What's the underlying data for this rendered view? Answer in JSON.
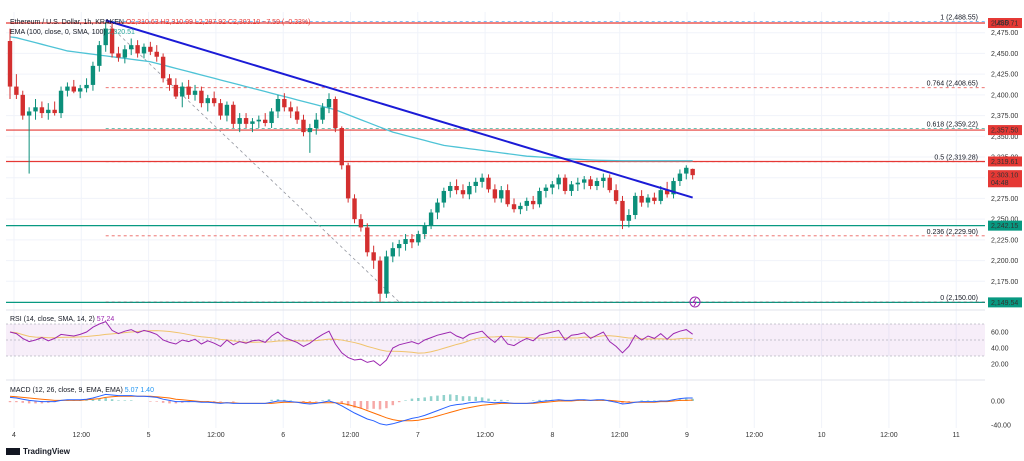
{
  "header": {
    "symbol": "Ethereum / U.S. Dollar, 1h, KRAKEN",
    "open": "O2,310.63",
    "high": "H2,310.99",
    "low": "L2,297.92",
    "close": "C2,303.10",
    "change": "−7.59 (−0.33%)",
    "ema_label": "EMA (100, close, 0, SMA, 100)",
    "ema_value": "2,320.51",
    "rsi_label": "RSI (14, close, SMA, 14, 2)",
    "rsi_value": "57.24",
    "macd_label": "MACD (12, 26, close, 9, EMA, EMA)",
    "macd_values": "5.07  1.40"
  },
  "currency": "USD",
  "brand": "TradingView",
  "price_axis": {
    "min": 2150,
    "max": 2500,
    "ticks": [
      "2,475.00",
      "2,450.00",
      "2,425.00",
      "2,400.00",
      "2,375.00",
      "2,350.00",
      "2,325.00",
      "2,300.00",
      "2,275.00",
      "2,250.00",
      "2,225.00",
      "2,200.00",
      "2,175.00"
    ],
    "tick_values": [
      2475,
      2450,
      2425,
      2400,
      2375,
      2350,
      2325,
      2300,
      2275,
      2250,
      2225,
      2200,
      2175
    ],
    "badges": [
      {
        "text": "2,486.71",
        "value": 2486.71,
        "color": "#e53935"
      },
      {
        "text": "2,357.50",
        "value": 2357.5,
        "color": "#e53935"
      },
      {
        "text": "2,319.61",
        "value": 2319.61,
        "color": "#e53935"
      },
      {
        "text": "2,303.10",
        "value": 2303.1,
        "color": "#e53935"
      },
      {
        "text": "04:48",
        "value": 2294.5,
        "color": "#e53935"
      },
      {
        "text": "2,242.15",
        "value": 2242.15,
        "color": "#089981"
      },
      {
        "text": "2,149.54",
        "value": 2149.54,
        "color": "#089981"
      }
    ]
  },
  "rsi_axis": {
    "ticks": [
      "60.00",
      "40.00",
      "20.00"
    ],
    "values": [
      60,
      40,
      20
    ]
  },
  "macd_axis": {
    "ticks": [
      "0.00",
      "-40.00"
    ],
    "values": [
      0,
      -40
    ]
  },
  "time_axis": [
    "4",
    "12:00",
    "5",
    "12:00",
    "6",
    "12:00",
    "7",
    "12:00",
    "8",
    "12:00",
    "9",
    "12:00",
    "10",
    "12:00",
    "11"
  ],
  "fib_levels": [
    {
      "label": "1 (2,488.55)",
      "value": 2488.55,
      "color": "#2196f3"
    },
    {
      "label": "0.764 (2,408.65)",
      "value": 2408.65,
      "color": "#e53935"
    },
    {
      "label": "0.618 (2,359.22)",
      "value": 2359.22,
      "color": "#089981"
    },
    {
      "label": "0.5 (2,319.28)",
      "value": 2319.28,
      "color": "#e53935"
    },
    {
      "label": "0.236 (2,229.90)",
      "value": 2229.9,
      "color": "#e53935"
    },
    {
      "label": "0 (2,150.00)",
      "value": 2150.0,
      "color": "#5d606b"
    }
  ],
  "horizontal_lines": [
    {
      "value": 2486.71,
      "color": "#e53935"
    },
    {
      "value": 2357.5,
      "color": "#e53935"
    },
    {
      "value": 2319.61,
      "color": "#e53935"
    },
    {
      "value": 2242.15,
      "color": "#089981"
    },
    {
      "value": 2149.54,
      "color": "#089981"
    }
  ],
  "trend_line": {
    "from": {
      "i": 15,
      "price": 2490
    },
    "to": {
      "i": 107,
      "price": 2276
    },
    "color": "#1b1bd6"
  },
  "chart_data": {
    "type": "candlestick",
    "title": "Ethereum / U.S. Dollar, 1h, KRAKEN",
    "ylim": [
      2150,
      2500
    ],
    "candles": [
      {
        "o": 2465,
        "h": 2480,
        "l": 2395,
        "c": 2410
      },
      {
        "o": 2410,
        "h": 2425,
        "l": 2395,
        "c": 2400
      },
      {
        "o": 2400,
        "h": 2405,
        "l": 2370,
        "c": 2375
      },
      {
        "o": 2375,
        "h": 2385,
        "l": 2305,
        "c": 2380
      },
      {
        "o": 2380,
        "h": 2395,
        "l": 2370,
        "c": 2385
      },
      {
        "o": 2385,
        "h": 2392,
        "l": 2372,
        "c": 2378
      },
      {
        "o": 2378,
        "h": 2390,
        "l": 2370,
        "c": 2382
      },
      {
        "o": 2382,
        "h": 2392,
        "l": 2375,
        "c": 2378
      },
      {
        "o": 2378,
        "h": 2410,
        "l": 2372,
        "c": 2405
      },
      {
        "o": 2405,
        "h": 2415,
        "l": 2398,
        "c": 2410
      },
      {
        "o": 2410,
        "h": 2418,
        "l": 2402,
        "c": 2404
      },
      {
        "o": 2404,
        "h": 2412,
        "l": 2396,
        "c": 2408
      },
      {
        "o": 2408,
        "h": 2420,
        "l": 2403,
        "c": 2412
      },
      {
        "o": 2412,
        "h": 2440,
        "l": 2405,
        "c": 2435
      },
      {
        "o": 2435,
        "h": 2465,
        "l": 2428,
        "c": 2460
      },
      {
        "o": 2460,
        "h": 2487,
        "l": 2452,
        "c": 2480
      },
      {
        "o": 2480,
        "h": 2486,
        "l": 2445,
        "c": 2450
      },
      {
        "o": 2450,
        "h": 2458,
        "l": 2440,
        "c": 2445
      },
      {
        "o": 2445,
        "h": 2460,
        "l": 2438,
        "c": 2455
      },
      {
        "o": 2455,
        "h": 2468,
        "l": 2448,
        "c": 2460
      },
      {
        "o": 2460,
        "h": 2466,
        "l": 2445,
        "c": 2450
      },
      {
        "o": 2450,
        "h": 2462,
        "l": 2444,
        "c": 2458
      },
      {
        "o": 2458,
        "h": 2464,
        "l": 2448,
        "c": 2452
      },
      {
        "o": 2452,
        "h": 2460,
        "l": 2440,
        "c": 2446
      },
      {
        "o": 2446,
        "h": 2450,
        "l": 2415,
        "c": 2420
      },
      {
        "o": 2420,
        "h": 2425,
        "l": 2405,
        "c": 2412
      },
      {
        "o": 2412,
        "h": 2420,
        "l": 2395,
        "c": 2398
      },
      {
        "o": 2398,
        "h": 2415,
        "l": 2385,
        "c": 2410
      },
      {
        "o": 2410,
        "h": 2418,
        "l": 2395,
        "c": 2400
      },
      {
        "o": 2400,
        "h": 2412,
        "l": 2393,
        "c": 2405
      },
      {
        "o": 2405,
        "h": 2410,
        "l": 2385,
        "c": 2390
      },
      {
        "o": 2390,
        "h": 2400,
        "l": 2380,
        "c": 2396
      },
      {
        "o": 2396,
        "h": 2404,
        "l": 2386,
        "c": 2390
      },
      {
        "o": 2390,
        "h": 2395,
        "l": 2370,
        "c": 2375
      },
      {
        "o": 2375,
        "h": 2392,
        "l": 2368,
        "c": 2388
      },
      {
        "o": 2388,
        "h": 2392,
        "l": 2360,
        "c": 2365
      },
      {
        "o": 2365,
        "h": 2378,
        "l": 2355,
        "c": 2372
      },
      {
        "o": 2372,
        "h": 2378,
        "l": 2360,
        "c": 2365
      },
      {
        "o": 2365,
        "h": 2372,
        "l": 2355,
        "c": 2368
      },
      {
        "o": 2368,
        "h": 2375,
        "l": 2360,
        "c": 2370
      },
      {
        "o": 2370,
        "h": 2378,
        "l": 2362,
        "c": 2366
      },
      {
        "o": 2366,
        "h": 2384,
        "l": 2360,
        "c": 2380
      },
      {
        "o": 2380,
        "h": 2400,
        "l": 2372,
        "c": 2395
      },
      {
        "o": 2395,
        "h": 2402,
        "l": 2380,
        "c": 2385
      },
      {
        "o": 2385,
        "h": 2392,
        "l": 2372,
        "c": 2380
      },
      {
        "o": 2380,
        "h": 2386,
        "l": 2365,
        "c": 2370
      },
      {
        "o": 2370,
        "h": 2376,
        "l": 2350,
        "c": 2355
      },
      {
        "o": 2355,
        "h": 2365,
        "l": 2330,
        "c": 2360
      },
      {
        "o": 2360,
        "h": 2378,
        "l": 2352,
        "c": 2370
      },
      {
        "o": 2370,
        "h": 2390,
        "l": 2365,
        "c": 2385
      },
      {
        "o": 2385,
        "h": 2402,
        "l": 2378,
        "c": 2395
      },
      {
        "o": 2395,
        "h": 2398,
        "l": 2355,
        "c": 2360
      },
      {
        "o": 2360,
        "h": 2362,
        "l": 2310,
        "c": 2315
      },
      {
        "o": 2315,
        "h": 2318,
        "l": 2270,
        "c": 2275
      },
      {
        "o": 2275,
        "h": 2280,
        "l": 2245,
        "c": 2250
      },
      {
        "o": 2250,
        "h": 2256,
        "l": 2235,
        "c": 2240
      },
      {
        "o": 2240,
        "h": 2245,
        "l": 2205,
        "c": 2210
      },
      {
        "o": 2210,
        "h": 2218,
        "l": 2190,
        "c": 2200
      },
      {
        "o": 2200,
        "h": 2205,
        "l": 2150,
        "c": 2160
      },
      {
        "o": 2160,
        "h": 2212,
        "l": 2155,
        "c": 2205
      },
      {
        "o": 2205,
        "h": 2222,
        "l": 2198,
        "c": 2215
      },
      {
        "o": 2215,
        "h": 2225,
        "l": 2205,
        "c": 2220
      },
      {
        "o": 2220,
        "h": 2232,
        "l": 2212,
        "c": 2226
      },
      {
        "o": 2226,
        "h": 2232,
        "l": 2215,
        "c": 2222
      },
      {
        "o": 2222,
        "h": 2236,
        "l": 2218,
        "c": 2232
      },
      {
        "o": 2232,
        "h": 2246,
        "l": 2226,
        "c": 2242
      },
      {
        "o": 2242,
        "h": 2262,
        "l": 2238,
        "c": 2258
      },
      {
        "o": 2258,
        "h": 2275,
        "l": 2250,
        "c": 2270
      },
      {
        "o": 2270,
        "h": 2288,
        "l": 2264,
        "c": 2284
      },
      {
        "o": 2284,
        "h": 2295,
        "l": 2276,
        "c": 2290
      },
      {
        "o": 2290,
        "h": 2298,
        "l": 2280,
        "c": 2285
      },
      {
        "o": 2285,
        "h": 2292,
        "l": 2275,
        "c": 2280
      },
      {
        "o": 2280,
        "h": 2295,
        "l": 2274,
        "c": 2290
      },
      {
        "o": 2290,
        "h": 2300,
        "l": 2282,
        "c": 2295
      },
      {
        "o": 2295,
        "h": 2305,
        "l": 2288,
        "c": 2300
      },
      {
        "o": 2300,
        "h": 2304,
        "l": 2282,
        "c": 2286
      },
      {
        "o": 2286,
        "h": 2292,
        "l": 2270,
        "c": 2275
      },
      {
        "o": 2275,
        "h": 2290,
        "l": 2270,
        "c": 2285
      },
      {
        "o": 2285,
        "h": 2292,
        "l": 2265,
        "c": 2268
      },
      {
        "o": 2268,
        "h": 2275,
        "l": 2258,
        "c": 2262
      },
      {
        "o": 2262,
        "h": 2270,
        "l": 2256,
        "c": 2266
      },
      {
        "o": 2266,
        "h": 2276,
        "l": 2260,
        "c": 2272
      },
      {
        "o": 2272,
        "h": 2278,
        "l": 2262,
        "c": 2268
      },
      {
        "o": 2268,
        "h": 2288,
        "l": 2264,
        "c": 2284
      },
      {
        "o": 2284,
        "h": 2292,
        "l": 2276,
        "c": 2288
      },
      {
        "o": 2288,
        "h": 2296,
        "l": 2280,
        "c": 2292
      },
      {
        "o": 2292,
        "h": 2304,
        "l": 2286,
        "c": 2300
      },
      {
        "o": 2300,
        "h": 2304,
        "l": 2280,
        "c": 2284
      },
      {
        "o": 2284,
        "h": 2296,
        "l": 2278,
        "c": 2292
      },
      {
        "o": 2292,
        "h": 2300,
        "l": 2284,
        "c": 2294
      },
      {
        "o": 2294,
        "h": 2302,
        "l": 2286,
        "c": 2298
      },
      {
        "o": 2298,
        "h": 2302,
        "l": 2286,
        "c": 2290
      },
      {
        "o": 2290,
        "h": 2300,
        "l": 2285,
        "c": 2296
      },
      {
        "o": 2296,
        "h": 2305,
        "l": 2288,
        "c": 2300
      },
      {
        "o": 2300,
        "h": 2304,
        "l": 2282,
        "c": 2285
      },
      {
        "o": 2285,
        "h": 2292,
        "l": 2268,
        "c": 2272
      },
      {
        "o": 2272,
        "h": 2278,
        "l": 2238,
        "c": 2248
      },
      {
        "o": 2248,
        "h": 2262,
        "l": 2240,
        "c": 2255
      },
      {
        "o": 2255,
        "h": 2282,
        "l": 2250,
        "c": 2278
      },
      {
        "o": 2278,
        "h": 2285,
        "l": 2265,
        "c": 2270
      },
      {
        "o": 2270,
        "h": 2280,
        "l": 2264,
        "c": 2276
      },
      {
        "o": 2276,
        "h": 2282,
        "l": 2268,
        "c": 2272
      },
      {
        "o": 2272,
        "h": 2290,
        "l": 2268,
        "c": 2285
      },
      {
        "o": 2285,
        "h": 2295,
        "l": 2276,
        "c": 2280
      },
      {
        "o": 2280,
        "h": 2300,
        "l": 2275,
        "c": 2296
      },
      {
        "o": 2296,
        "h": 2310,
        "l": 2290,
        "c": 2305
      },
      {
        "o": 2305,
        "h": 2315,
        "l": 2298,
        "c": 2312
      },
      {
        "o": 2310.63,
        "h": 2310.99,
        "l": 2297.92,
        "c": 2303.1
      }
    ],
    "ema100": [
      2470,
      2469,
      2467,
      2465,
      2463,
      2461,
      2459,
      2457,
      2455,
      2453,
      2452,
      2451,
      2450,
      2449,
      2448,
      2447,
      2446,
      2445,
      2444,
      2443,
      2442,
      2441,
      2440,
      2438,
      2436,
      2434,
      2432,
      2430,
      2428,
      2426,
      2424,
      2422,
      2420,
      2418,
      2416,
      2414,
      2412,
      2410,
      2408,
      2406,
      2404,
      2402,
      2400,
      2398,
      2396,
      2394,
      2392,
      2390,
      2388,
      2386,
      2384,
      2382,
      2379,
      2376,
      2373,
      2370,
      2367,
      2364,
      2361,
      2358,
      2355,
      2353,
      2351,
      2349,
      2347,
      2345,
      2343,
      2341,
      2339,
      2338,
      2337,
      2336,
      2335,
      2334,
      2333,
      2332,
      2331,
      2330,
      2329,
      2328,
      2327,
      2326,
      2325.5,
      2325,
      2324.5,
      2324,
      2323.5,
      2323,
      2322.6,
      2322.2,
      2321.8,
      2321.4,
      2321.1,
      2320.9,
      2320.7,
      2320.6,
      2320.5,
      2320.5,
      2320.5,
      2320.5,
      2320.5,
      2320.5,
      2320.5,
      2320.5,
      2320.5,
      2320.5,
      2320.5,
      2320.51
    ],
    "rsi": [
      60,
      58,
      52,
      48,
      50,
      53,
      49,
      52,
      57,
      56,
      55,
      57,
      60,
      66,
      70,
      73,
      62,
      58,
      61,
      63,
      59,
      62,
      60,
      57,
      50,
      47,
      45,
      50,
      48,
      51,
      45,
      49,
      46,
      42,
      50,
      44,
      48,
      46,
      49,
      50,
      47,
      55,
      60,
      53,
      50,
      47,
      42,
      46,
      52,
      57,
      61,
      45,
      34,
      28,
      25,
      26,
      22,
      24,
      18,
      25,
      40,
      44,
      46,
      48,
      45,
      50,
      53,
      56,
      58,
      60,
      55,
      52,
      57,
      59,
      61,
      53,
      47,
      55,
      45,
      43,
      48,
      52,
      49,
      56,
      58,
      60,
      62,
      50,
      56,
      57,
      59,
      52,
      56,
      60,
      48,
      42,
      34,
      42,
      56,
      50,
      55,
      52,
      58,
      51,
      58,
      61,
      63,
      57.24
    ],
    "macd": [
      6,
      5,
      3,
      1,
      0,
      -1,
      -1,
      -1,
      1,
      2,
      2,
      2,
      3,
      5,
      8,
      11,
      10,
      9,
      9,
      9,
      8,
      8,
      7,
      6,
      3,
      1,
      -1,
      -1,
      -1,
      -1,
      -2,
      -2,
      -3,
      -4,
      -3,
      -4,
      -4,
      -4,
      -4,
      -4,
      -4,
      -2,
      0,
      0,
      -1,
      -2,
      -4,
      -5,
      -4,
      -2,
      0,
      -3,
      -8,
      -14,
      -20,
      -25,
      -30,
      -33,
      -38,
      -40,
      -38,
      -35,
      -32,
      -29,
      -27,
      -24,
      -20,
      -16,
      -12,
      -8,
      -6,
      -5,
      -3,
      -2,
      -1,
      -2,
      -3,
      -2,
      -3,
      -4,
      -4,
      -4,
      -3,
      -1,
      0,
      1,
      2,
      1,
      1,
      2,
      2,
      1,
      2,
      2,
      0,
      -2,
      -5,
      -4,
      -2,
      -1,
      -1,
      -1,
      0,
      0,
      2,
      4,
      5,
      5.07
    ],
    "signal": [
      8,
      7,
      6,
      5,
      4,
      3,
      2,
      1,
      1,
      1,
      1,
      1,
      2,
      3,
      4,
      6,
      7,
      8,
      8,
      8,
      8,
      8,
      8,
      7,
      6,
      5,
      3,
      2,
      1,
      0,
      -1,
      -1,
      -2,
      -3,
      -3,
      -3,
      -4,
      -4,
      -4,
      -4,
      -4,
      -4,
      -3,
      -2,
      -2,
      -2,
      -2,
      -3,
      -3,
      -3,
      -3,
      -3,
      -4,
      -6,
      -9,
      -12,
      -16,
      -20,
      -24,
      -28,
      -31,
      -33,
      -33,
      -33,
      -32,
      -30,
      -28,
      -25,
      -22,
      -19,
      -16,
      -13,
      -11,
      -9,
      -7,
      -6,
      -5,
      -4,
      -4,
      -4,
      -4,
      -4,
      -4,
      -3,
      -2,
      -1,
      0,
      0,
      0,
      1,
      1,
      1,
      1,
      1,
      1,
      0,
      -1,
      -2,
      -2,
      -2,
      -2,
      -2,
      -1,
      -1,
      0,
      1,
      1,
      1.4
    ]
  }
}
